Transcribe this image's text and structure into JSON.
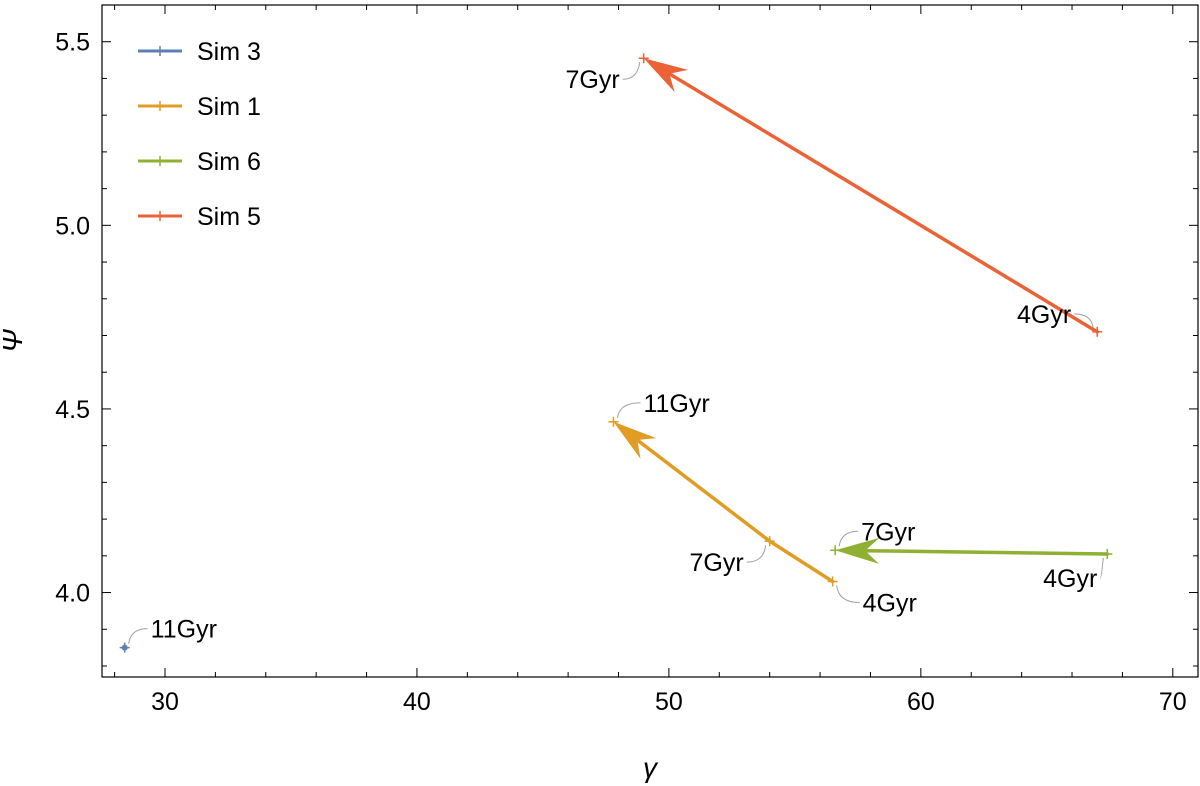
{
  "chart_data": {
    "type": "line",
    "title": "",
    "xlabel": "γ",
    "ylabel": "Ψ",
    "xlim": [
      27.5,
      71
    ],
    "ylim": [
      3.77,
      5.6
    ],
    "x_ticks": [
      30,
      40,
      50,
      60,
      70
    ],
    "x_tick_labels": [
      "30",
      "40",
      "50",
      "60",
      "70"
    ],
    "y_ticks": [
      4.0,
      4.5,
      5.0,
      5.5
    ],
    "y_tick_labels": [
      "4.0",
      "4.5",
      "5.0",
      "5.5"
    ],
    "grid": false,
    "legend_position": "top-left",
    "series": [
      {
        "name": "Sim 3",
        "color": "#5e81b5",
        "points": [
          {
            "x": 28.4,
            "y": 3.85,
            "label": "11Gyr"
          }
        ],
        "arrow": false
      },
      {
        "name": "Sim 1",
        "color": "#e19c24",
        "points": [
          {
            "x": 56.5,
            "y": 4.03,
            "label": "4Gyr"
          },
          {
            "x": 54.0,
            "y": 4.14,
            "label": "7Gyr"
          },
          {
            "x": 47.8,
            "y": 4.465,
            "label": "11Gyr"
          }
        ],
        "arrow": true
      },
      {
        "name": "Sim 6",
        "color": "#8fb032",
        "points": [
          {
            "x": 67.4,
            "y": 4.105,
            "label": "4Gyr"
          },
          {
            "x": 56.6,
            "y": 4.115,
            "label": "7Gyr"
          }
        ],
        "arrow": true
      },
      {
        "name": "Sim 5",
        "color": "#eb6235",
        "points": [
          {
            "x": 67.0,
            "y": 4.71,
            "label": "4Gyr"
          },
          {
            "x": 49.0,
            "y": 5.455,
            "label": "7Gyr"
          }
        ],
        "arrow": true
      }
    ]
  }
}
